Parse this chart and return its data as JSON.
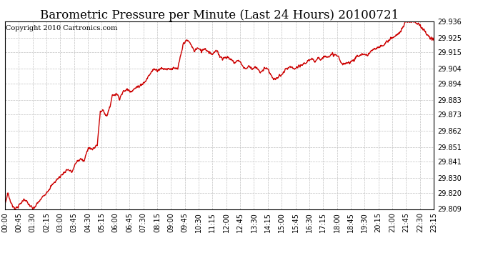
{
  "title": "Barometric Pressure per Minute (Last 24 Hours) 20100721",
  "copyright": "Copyright 2010 Cartronics.com",
  "line_color": "#cc0000",
  "bg_color": "#ffffff",
  "plot_bg_color": "#ffffff",
  "grid_color": "#c0c0c0",
  "ylim": [
    29.809,
    29.936
  ],
  "yticks": [
    29.809,
    29.82,
    29.83,
    29.841,
    29.851,
    29.862,
    29.873,
    29.883,
    29.894,
    29.904,
    29.915,
    29.925,
    29.936
  ],
  "xtick_labels": [
    "00:00",
    "00:45",
    "01:30",
    "02:15",
    "03:00",
    "03:45",
    "04:30",
    "05:15",
    "06:00",
    "06:45",
    "07:30",
    "08:15",
    "09:00",
    "09:45",
    "10:30",
    "11:15",
    "12:00",
    "12:45",
    "13:30",
    "14:15",
    "15:00",
    "15:45",
    "16:30",
    "17:15",
    "18:00",
    "18:45",
    "19:30",
    "20:15",
    "21:00",
    "21:45",
    "22:30",
    "23:15"
  ],
  "title_fontsize": 12,
  "copyright_fontsize": 7,
  "tick_fontsize": 7,
  "line_width": 1.0,
  "keypoints": [
    [
      0,
      29.812
    ],
    [
      10,
      29.82
    ],
    [
      20,
      29.813
    ],
    [
      35,
      29.809
    ],
    [
      50,
      29.812
    ],
    [
      65,
      29.816
    ],
    [
      80,
      29.812
    ],
    [
      95,
      29.809
    ],
    [
      110,
      29.813
    ],
    [
      130,
      29.818
    ],
    [
      150,
      29.823
    ],
    [
      170,
      29.828
    ],
    [
      190,
      29.832
    ],
    [
      210,
      29.836
    ],
    [
      225,
      29.834
    ],
    [
      240,
      29.841
    ],
    [
      255,
      29.843
    ],
    [
      265,
      29.841
    ],
    [
      280,
      29.851
    ],
    [
      295,
      29.849
    ],
    [
      310,
      29.853
    ],
    [
      320,
      29.875
    ],
    [
      330,
      29.876
    ],
    [
      340,
      29.872
    ],
    [
      350,
      29.876
    ],
    [
      360,
      29.886
    ],
    [
      375,
      29.887
    ],
    [
      385,
      29.884
    ],
    [
      395,
      29.888
    ],
    [
      410,
      29.89
    ],
    [
      425,
      29.889
    ],
    [
      440,
      29.891
    ],
    [
      455,
      29.893
    ],
    [
      470,
      29.895
    ],
    [
      485,
      29.9
    ],
    [
      500,
      29.904
    ],
    [
      510,
      29.903
    ],
    [
      520,
      29.904
    ],
    [
      540,
      29.904
    ],
    [
      560,
      29.904
    ],
    [
      580,
      29.904
    ],
    [
      600,
      29.922
    ],
    [
      615,
      29.923
    ],
    [
      625,
      29.92
    ],
    [
      635,
      29.916
    ],
    [
      645,
      29.918
    ],
    [
      660,
      29.916
    ],
    [
      670,
      29.918
    ],
    [
      680,
      29.916
    ],
    [
      695,
      29.914
    ],
    [
      710,
      29.916
    ],
    [
      720,
      29.913
    ],
    [
      730,
      29.911
    ],
    [
      745,
      29.912
    ],
    [
      760,
      29.91
    ],
    [
      770,
      29.908
    ],
    [
      785,
      29.91
    ],
    [
      800,
      29.905
    ],
    [
      810,
      29.904
    ],
    [
      820,
      29.906
    ],
    [
      830,
      29.904
    ],
    [
      840,
      29.905
    ],
    [
      850,
      29.903
    ],
    [
      860,
      29.901
    ],
    [
      870,
      29.905
    ],
    [
      880,
      29.904
    ],
    [
      890,
      29.901
    ],
    [
      900,
      29.897
    ],
    [
      910,
      29.897
    ],
    [
      920,
      29.899
    ],
    [
      930,
      29.9
    ],
    [
      940,
      29.903
    ],
    [
      955,
      29.905
    ],
    [
      970,
      29.904
    ],
    [
      985,
      29.905
    ],
    [
      1000,
      29.907
    ],
    [
      1010,
      29.908
    ],
    [
      1020,
      29.91
    ],
    [
      1030,
      29.91
    ],
    [
      1040,
      29.909
    ],
    [
      1050,
      29.912
    ],
    [
      1060,
      29.91
    ],
    [
      1070,
      29.912
    ],
    [
      1080,
      29.913
    ],
    [
      1090,
      29.912
    ],
    [
      1100,
      29.914
    ],
    [
      1110,
      29.913
    ],
    [
      1120,
      29.912
    ],
    [
      1130,
      29.907
    ],
    [
      1140,
      29.907
    ],
    [
      1150,
      29.908
    ],
    [
      1160,
      29.909
    ],
    [
      1170,
      29.91
    ],
    [
      1180,
      29.912
    ],
    [
      1200,
      29.914
    ],
    [
      1215,
      29.913
    ],
    [
      1230,
      29.916
    ],
    [
      1250,
      29.918
    ],
    [
      1270,
      29.92
    ],
    [
      1290,
      29.924
    ],
    [
      1310,
      29.926
    ],
    [
      1330,
      29.93
    ],
    [
      1345,
      29.936
    ],
    [
      1360,
      29.936
    ],
    [
      1375,
      29.936
    ],
    [
      1390,
      29.934
    ],
    [
      1405,
      29.93
    ],
    [
      1420,
      29.926
    ],
    [
      1430,
      29.924
    ],
    [
      1439,
      29.924
    ]
  ]
}
